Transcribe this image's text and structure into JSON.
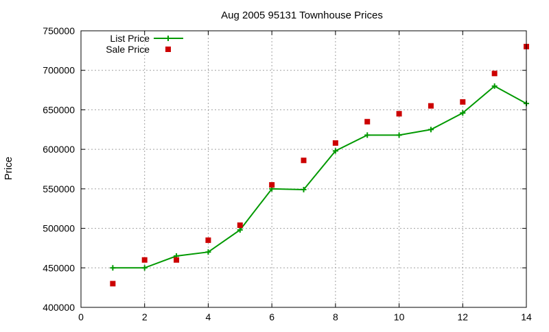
{
  "chart_data": {
    "type": "line",
    "title": "Aug 2005 95131 Townhouse Prices",
    "xlabel": "",
    "ylabel": "Price",
    "xlim": [
      0,
      14
    ],
    "ylim": [
      400000,
      750000
    ],
    "x_ticks": [
      0,
      2,
      4,
      6,
      8,
      10,
      12,
      14
    ],
    "y_ticks": [
      400000,
      450000,
      500000,
      550000,
      600000,
      650000,
      700000,
      750000
    ],
    "grid": true,
    "legend_position": "top-left",
    "series": [
      {
        "name": "List Price",
        "style": "linespoints",
        "marker": "plus",
        "color": "#009900",
        "x": [
          1,
          2,
          3,
          4,
          5,
          6,
          7,
          8,
          9,
          10,
          11,
          12,
          13,
          14
        ],
        "y": [
          450000,
          450000,
          465000,
          470000,
          498000,
          550000,
          549000,
          598000,
          618000,
          618000,
          625000,
          646000,
          680000,
          658000
        ]
      },
      {
        "name": "Sale Price",
        "style": "points",
        "marker": "square",
        "color": "#cc0000",
        "x": [
          1,
          2,
          3,
          4,
          5,
          6,
          7,
          8,
          9,
          10,
          11,
          12,
          13,
          14
        ],
        "y": [
          430000,
          460000,
          460000,
          485000,
          504000,
          555000,
          586000,
          608000,
          635000,
          645000,
          655000,
          660000,
          696000,
          730000
        ]
      }
    ]
  }
}
